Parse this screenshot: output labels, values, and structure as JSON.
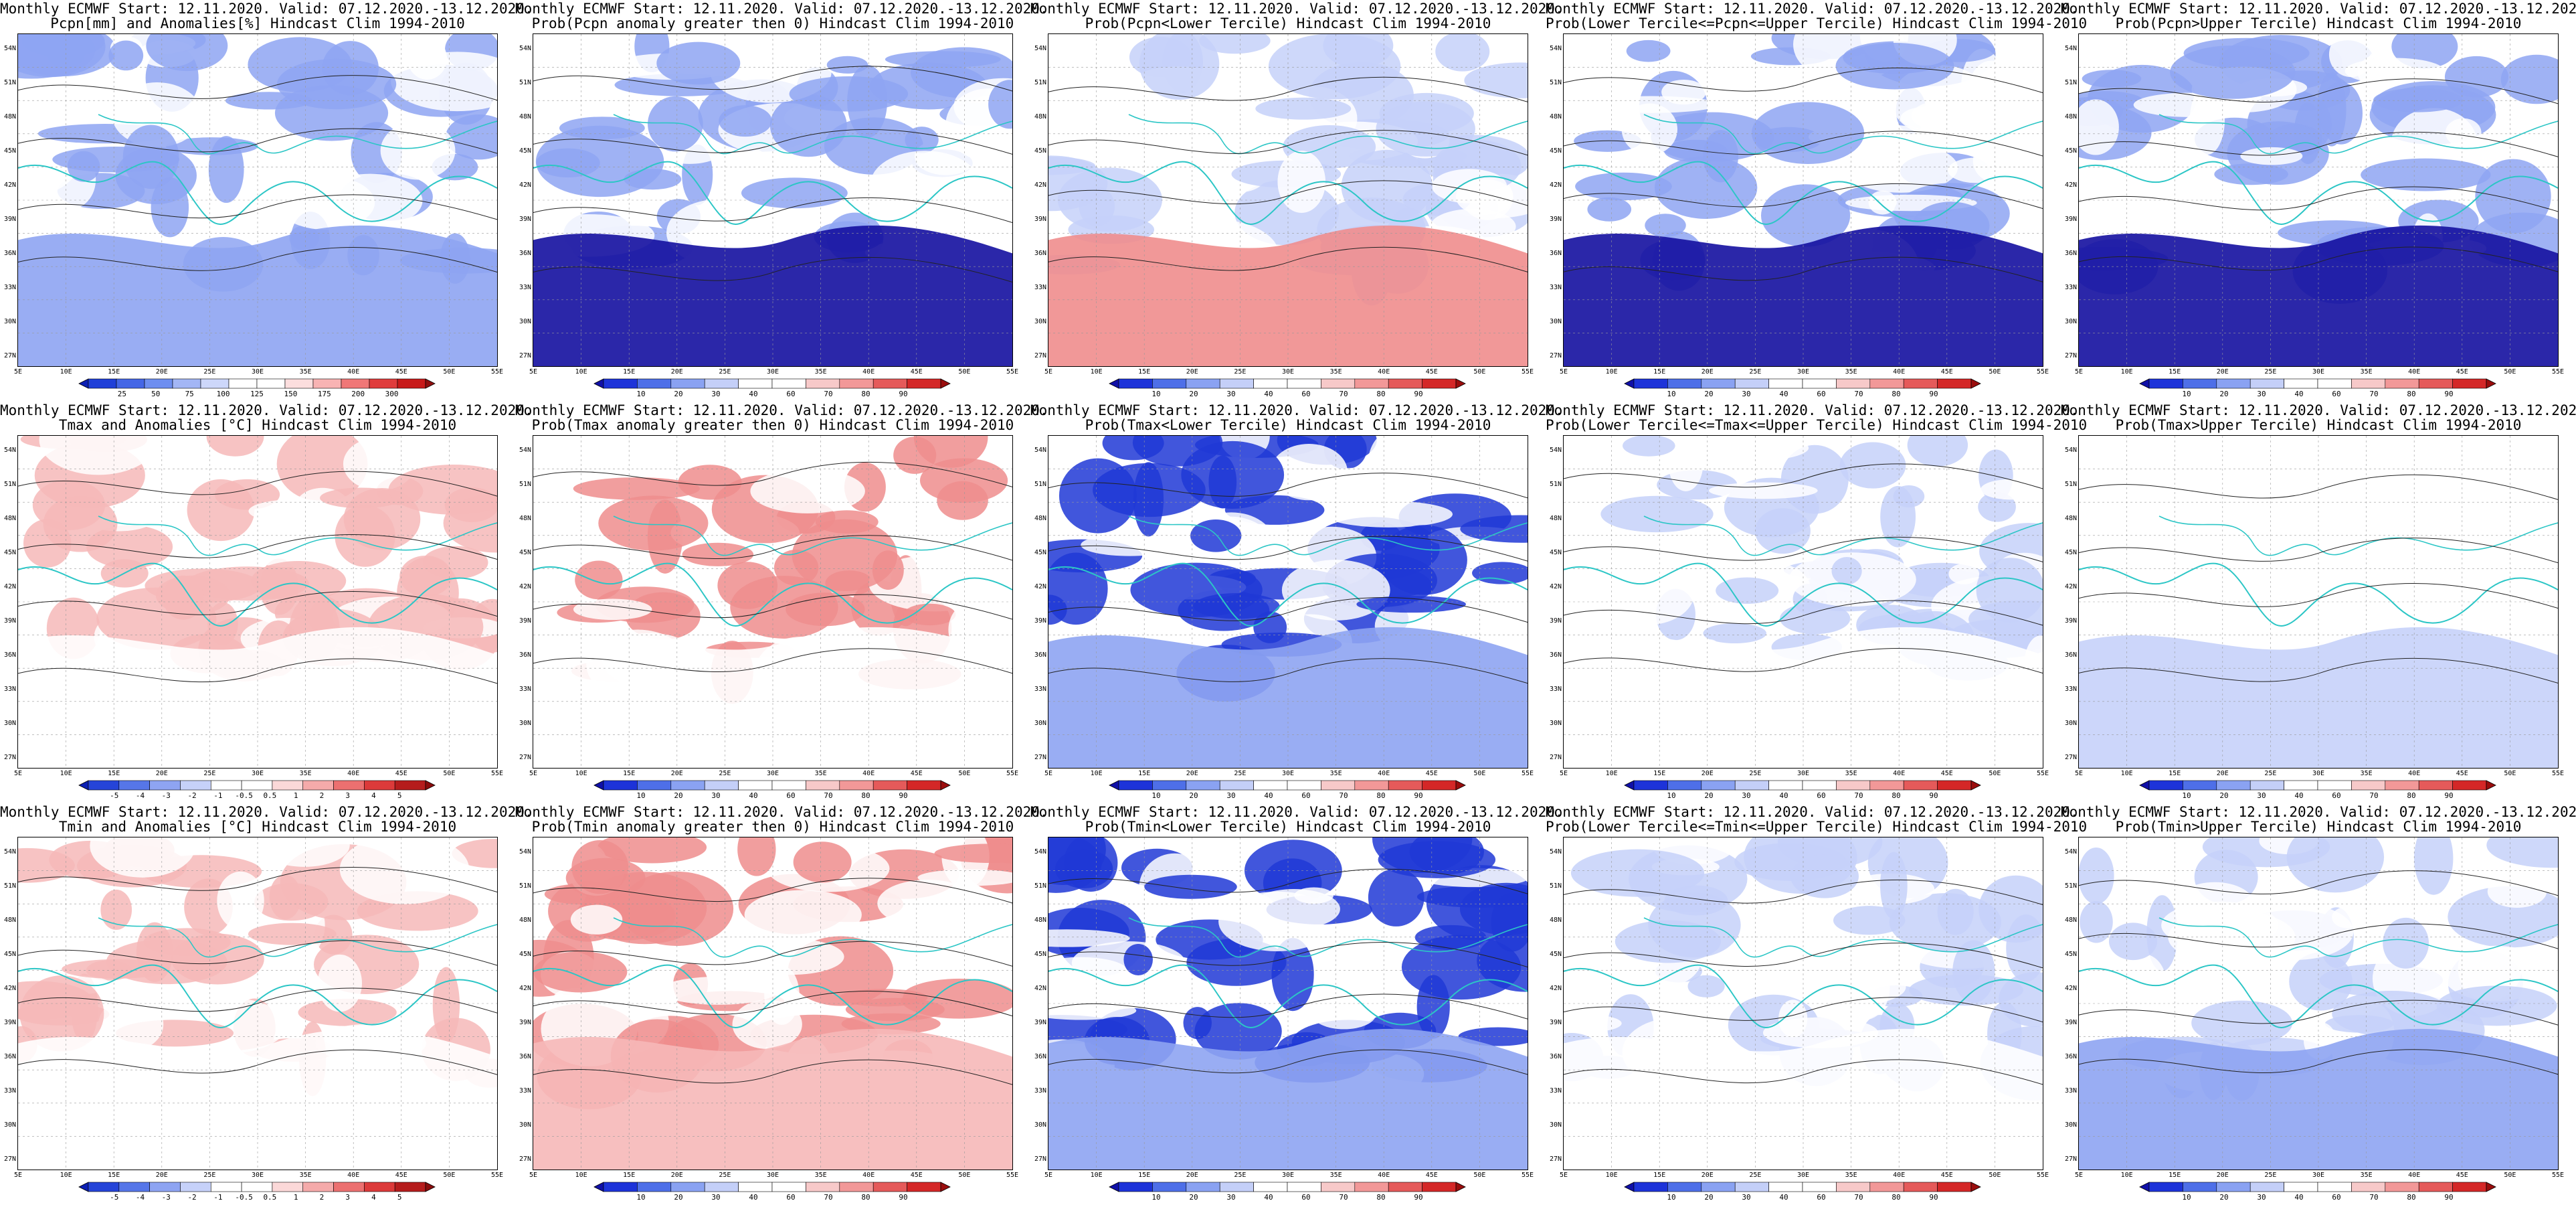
{
  "scales": {
    "pcp": {
      "colors": [
        "#0b1fb4",
        "#1f3fd8",
        "#4466e6",
        "#6e8ef0",
        "#a3b6f5",
        "#cdd7fa",
        "#ffffff",
        "#ffffff",
        "#fcdede",
        "#f8b3b3",
        "#f07777",
        "#e03c3c",
        "#c81a1a",
        "#8f0f0f"
      ],
      "labels": [
        "25",
        "50",
        "75",
        "100",
        "125",
        "150",
        "175",
        "200",
        "300"
      ]
    },
    "prob": {
      "colors": [
        "#1010a8",
        "#1d33d9",
        "#4e6fe8",
        "#8aa2f2",
        "#c4cff8",
        "#ffffff",
        "#ffffff",
        "#f7c9c9",
        "#f29898",
        "#e55a5a",
        "#d42727",
        "#9a0d0d"
      ],
      "labels": [
        "10",
        "20",
        "30",
        "40",
        "60",
        "70",
        "80",
        "90"
      ]
    },
    "temp": {
      "colors": [
        "#0b1fb4",
        "#2544d8",
        "#5676e8",
        "#8ea4f2",
        "#c6d1f9",
        "#ffffff",
        "#ffffff",
        "#fbd8d8",
        "#f5aaaa",
        "#ec7070",
        "#dc3a3a",
        "#b51c1c",
        "#8a0c0c"
      ],
      "labels": [
        "-5",
        "-4",
        "-3",
        "-2",
        "-1",
        "-0.5",
        "0.5",
        "1",
        "2",
        "3",
        "4",
        "5"
      ]
    }
  },
  "axes": {
    "lat": [
      "54N",
      "51N",
      "48N",
      "45N",
      "42N",
      "39N",
      "36N",
      "33N",
      "30N",
      "27N"
    ],
    "lon": [
      "5E",
      "10E",
      "15E",
      "20E",
      "25E",
      "30E",
      "35E",
      "40E",
      "45E",
      "50E",
      "55E"
    ]
  },
  "panels": [
    {
      "line1": "Monthly ECMWF Start: 12.11.2020. Valid: 07.12.2020.-13.12.2020.",
      "line2": "Pcpn[mm] and Anomalies[%] Hindcast Clim 1994-2010",
      "scale": "pcp",
      "tint": "blue",
      "south": "blue"
    },
    {
      "line1": "Monthly ECMWF Start: 12.11.2020. Valid: 07.12.2020.-13.12.2020.",
      "line2": "Prob(Pcpn anomaly greater then 0) Hindcast Clim 1994-2010",
      "scale": "prob",
      "tint": "blue",
      "south": "navy"
    },
    {
      "line1": "Monthly ECMWF Start: 12.11.2020. Valid: 07.12.2020.-13.12.2020.",
      "line2": "Prob(Pcpn<Lower Tercile) Hindcast Clim 1994-2010",
      "scale": "prob",
      "tint": "lightblue",
      "south": "red"
    },
    {
      "line1": "Monthly ECMWF Start: 12.11.2020. Valid: 07.12.2020.-13.12.2020.",
      "line2": "Prob(Lower Tercile<=Pcpn<=Upper Tercile) Hindcast Clim 1994-2010",
      "scale": "prob",
      "tint": "blue",
      "south": "navy"
    },
    {
      "line1": "Monthly ECMWF Start: 12.11.2020. Valid: 07.12.2020.-13.12.2020.",
      "line2": "Prob(Pcpn>Upper Tercile) Hindcast Clim 1994-2010",
      "scale": "prob",
      "tint": "blue",
      "south": "navy"
    },
    {
      "line1": "Monthly ECMWF Start: 12.11.2020. Valid: 07.12.2020.-13.12.2020.",
      "line2": "Tmax and Anomalies [°C] Hindcast Clim 1994-2010",
      "scale": "temp",
      "tint": "lightred",
      "south": "white"
    },
    {
      "line1": "Monthly ECMWF Start: 12.11.2020. Valid: 07.12.2020.-13.12.2020.",
      "line2": "Prob(Tmax anomaly greater then 0) Hindcast Clim 1994-2010",
      "scale": "prob",
      "tint": "red",
      "south": "white"
    },
    {
      "line1": "Monthly ECMWF Start: 12.11.2020. Valid: 07.12.2020.-13.12.2020.",
      "line2": "Prob(Tmax<Lower Tercile) Hindcast Clim 1994-2010",
      "scale": "prob",
      "tint": "deepblue",
      "south": "blue"
    },
    {
      "line1": "Monthly ECMWF Start: 12.11.2020. Valid: 07.12.2020.-13.12.2020.",
      "line2": "Prob(Lower Tercile<=Tmax<=Upper Tercile) Hindcast Clim 1994-2010",
      "scale": "prob",
      "tint": "lightblue",
      "south": "white"
    },
    {
      "line1": "Monthly ECMWF Start: 12.11.2020. Valid: 07.12.2020.-13.12.2020.",
      "line2": "Prob(Tmax>Upper Tercile) Hindcast Clim 1994-2010",
      "scale": "prob",
      "tint": "white",
      "south": "lightblue"
    },
    {
      "line1": "Monthly ECMWF Start: 12.11.2020. Valid: 07.12.2020.-13.12.2020.",
      "line2": "Tmin and Anomalies [°C] Hindcast Clim 1994-2010",
      "scale": "temp",
      "tint": "lightred",
      "south": "white"
    },
    {
      "line1": "Monthly ECMWF Start: 12.11.2020. Valid: 07.12.2020.-13.12.2020.",
      "line2": "Prob(Tmin anomaly greater then 0) Hindcast Clim 1994-2010",
      "scale": "prob",
      "tint": "red",
      "south": "lightred"
    },
    {
      "line1": "Monthly ECMWF Start: 12.11.2020. Valid: 07.12.2020.-13.12.2020.",
      "line2": "Prob(Tmin<Lower Tercile) Hindcast Clim 1994-2010",
      "scale": "prob",
      "tint": "deepblue",
      "south": "blue"
    },
    {
      "line1": "Monthly ECMWF Start: 12.11.2020. Valid: 07.12.2020.-13.12.2020.",
      "line2": "Prob(Lower Tercile<=Tmin<=Upper Tercile) Hindcast Clim 1994-2010",
      "scale": "prob",
      "tint": "lightblue",
      "south": "white"
    },
    {
      "line1": "Monthly ECMWF Start: 12.11.2020. Valid: 07.12.2020.-13.12.2020.",
      "line2": "Prob(Tmin>Upper Tercile) Hindcast Clim 1994-2010",
      "scale": "prob",
      "tint": "lightblue",
      "south": "blue"
    }
  ],
  "tint_colors": {
    "blue": "#8ea4f2",
    "lightblue": "#c6d1f9",
    "navy": "#1410a0",
    "deepblue": "#2038d6",
    "red": "#ef8d8d",
    "lightred": "#f6b8b8",
    "white": "#ffffff"
  }
}
